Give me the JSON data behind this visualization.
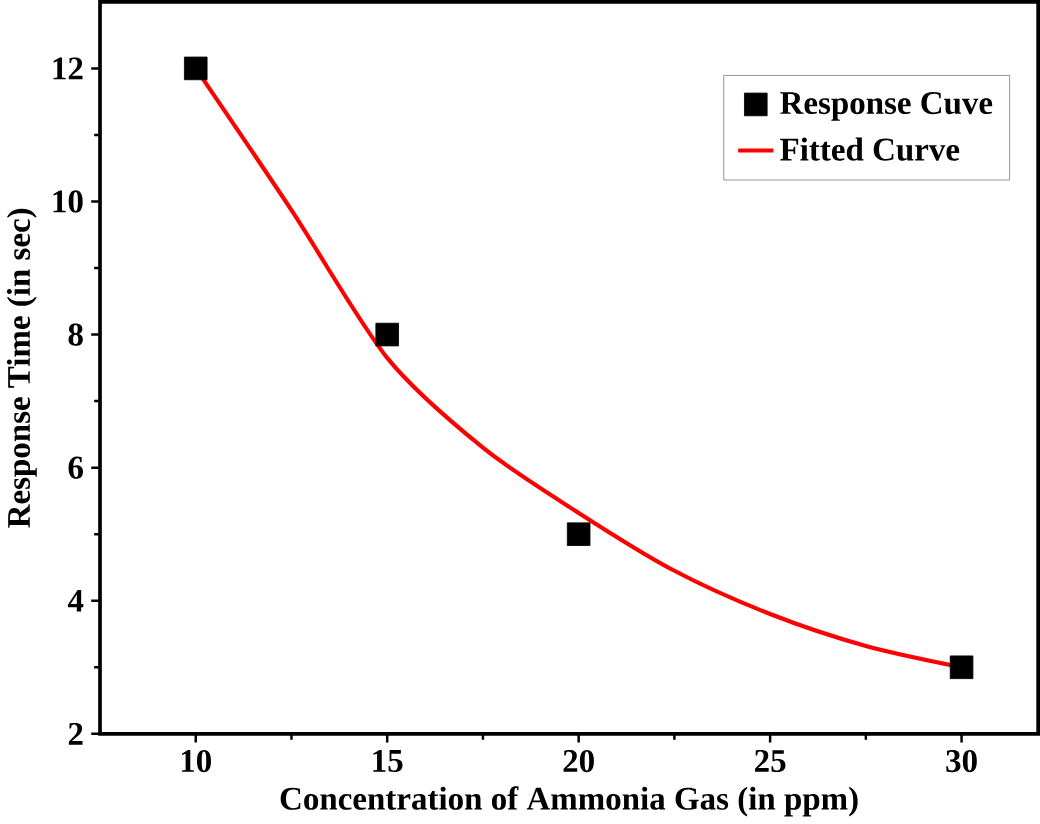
{
  "chart_data": {
    "type": "scatter",
    "xlabel": "Concentration of Ammonia Gas (in ppm)",
    "ylabel": "Response Time (in sec)",
    "xlim": [
      7.5,
      32
    ],
    "ylim": [
      2,
      13
    ],
    "xticks": [
      10,
      15,
      20,
      25,
      30
    ],
    "yticks": [
      2,
      4,
      6,
      8,
      10,
      12
    ],
    "grid": false,
    "legend": "top right",
    "series": [
      {
        "name": "Response Cuve",
        "marker": "square",
        "color": "#000000",
        "x": [
          10,
          15,
          20,
          30
        ],
        "values": [
          12,
          8,
          5,
          3
        ]
      },
      {
        "name": "Fitted Curve",
        "type": "line",
        "marker": "none",
        "line_style": "solid",
        "color": "#ff0000",
        "x": [
          10,
          12.5,
          15,
          17.5,
          20,
          22.5,
          25,
          27.5,
          30
        ],
        "values": [
          12,
          9.87,
          7.65,
          6.3,
          5.32,
          4.45,
          3.8,
          3.32,
          3.0
        ]
      }
    ]
  }
}
